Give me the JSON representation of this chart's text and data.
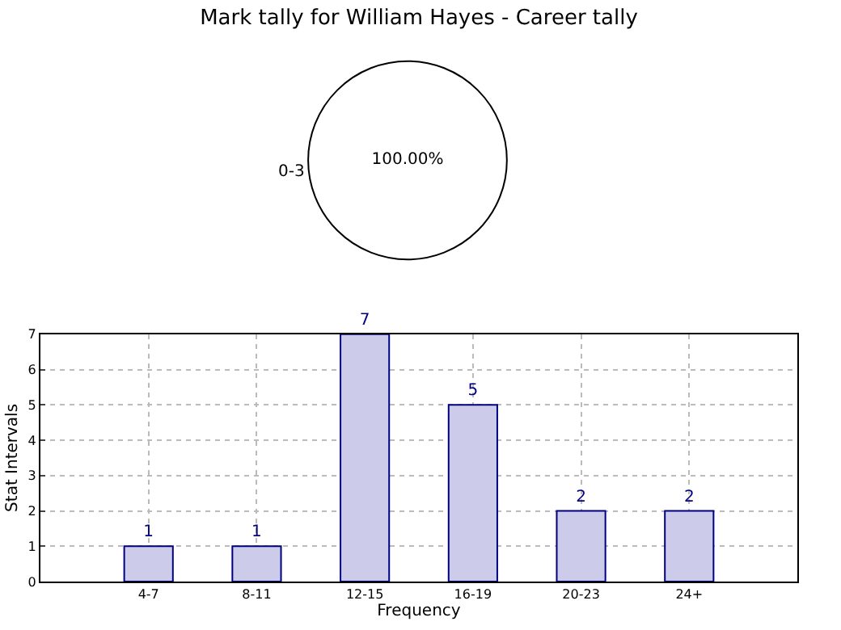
{
  "chart_data": [
    {
      "type": "pie",
      "title": "Mark tally for William Hayes - Career tally",
      "categories": [
        "0-3"
      ],
      "values": [
        100
      ],
      "colors": [
        "#ffffff"
      ],
      "value_labels": [
        "100.00%"
      ],
      "legend": false
    },
    {
      "type": "bar",
      "categories": [
        "4-7",
        "8-11",
        "12-15",
        "16-19",
        "20-23",
        "24+"
      ],
      "values": [
        1,
        1,
        7,
        5,
        2,
        2
      ],
      "color": "#ccccea",
      "xlabel": "Frequency",
      "ylabel": "Stat Intervals",
      "ylim": [
        0,
        7
      ],
      "yticks": [
        0,
        1,
        2,
        3,
        4,
        5,
        6,
        7
      ],
      "grid": true,
      "data_labels": true
    }
  ]
}
